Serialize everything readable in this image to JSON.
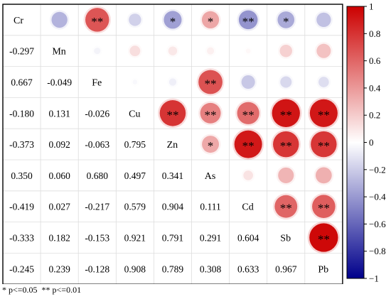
{
  "chart_data": {
    "type": "heatmap",
    "subtype": "correlation-matrix",
    "variables": [
      "Cr",
      "Mn",
      "Fe",
      "Cu",
      "Zn",
      "As",
      "Cd",
      "Sb",
      "Pb"
    ],
    "lower_triangle_values": [
      [
        "-0.297",
        "0.667",
        "-0.180",
        "-0.373",
        "0.350",
        "-0.419",
        "-0.333",
        "-0.245"
      ],
      [
        "-0.049",
        "0.131",
        "0.092",
        "0.060",
        "0.027",
        "0.182",
        "0.239"
      ],
      [
        "-0.026",
        "-0.063",
        "0.680",
        "-0.217",
        "-0.153",
        "-0.128"
      ],
      [
        "0.795",
        "0.497",
        "0.579",
        "0.921",
        "0.908"
      ],
      [
        "0.341",
        "0.904",
        "0.791",
        "0.789"
      ],
      [
        "0.111",
        "0.291",
        "0.308"
      ],
      [
        "0.604",
        "0.633"
      ],
      [
        "0.967"
      ]
    ],
    "significance_marks": [
      [
        "",
        "**",
        "",
        "*",
        "*",
        "**",
        "*",
        ""
      ],
      [
        "",
        "",
        "",
        "",
        "",
        "",
        ""
      ],
      [
        "",
        "",
        "**",
        "",
        "",
        ""
      ],
      [
        "**",
        "**",
        "**",
        "**",
        "**"
      ],
      [
        "*",
        "**",
        "**",
        "**"
      ],
      [
        "",
        "",
        ""
      ],
      [
        "**",
        "**"
      ],
      [
        "**"
      ]
    ],
    "colorbar": {
      "range": [
        -1,
        1
      ],
      "ticks": [
        "1",
        "0.8",
        "0.6",
        "0.4",
        "0.2",
        "0",
        "−0.2",
        "−0.4",
        "−0.6",
        "−0.8",
        "−1"
      ],
      "low_color": "#00008b",
      "mid_color": "#ffffff",
      "high_color": "#cc0000"
    },
    "legend_note": "* p<=0.05  ** p<=0.01"
  }
}
